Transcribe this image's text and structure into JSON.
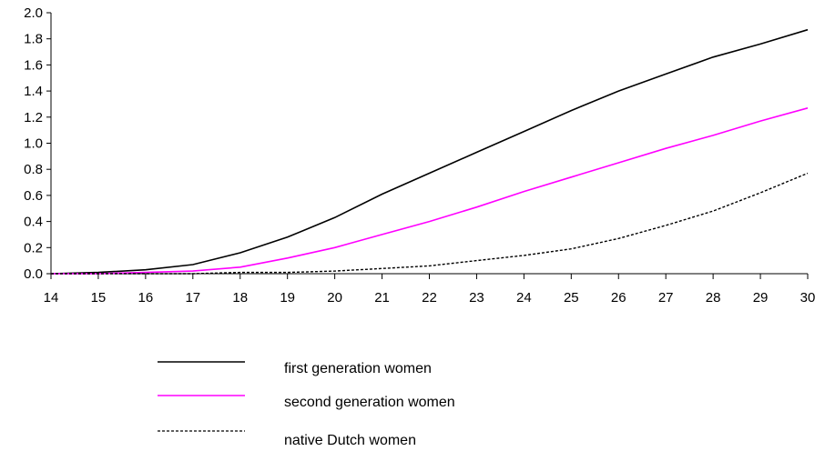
{
  "chart_data": {
    "type": "line",
    "title": "",
    "xlabel": "",
    "ylabel": "",
    "x": [
      14,
      15,
      16,
      17,
      18,
      19,
      20,
      21,
      22,
      23,
      24,
      25,
      26,
      27,
      28,
      29,
      30
    ],
    "xlim": [
      14,
      30
    ],
    "ylim": [
      0,
      2.0
    ],
    "y_ticks": [
      "0.0",
      "0.2",
      "0.4",
      "0.6",
      "0.8",
      "1.0",
      "1.2",
      "1.4",
      "1.6",
      "1.8",
      "2.0"
    ],
    "x_ticks": [
      "14",
      "15",
      "16",
      "17",
      "18",
      "19",
      "20",
      "21",
      "22",
      "23",
      "24",
      "25",
      "26",
      "27",
      "28",
      "29",
      "30"
    ],
    "grid": false,
    "legend_position": "bottom",
    "series": [
      {
        "name": "first generation women",
        "color": "#000000",
        "style": "solid",
        "values": [
          0.0,
          0.01,
          0.03,
          0.07,
          0.16,
          0.28,
          0.43,
          0.61,
          0.77,
          0.93,
          1.09,
          1.25,
          1.4,
          1.53,
          1.66,
          1.76,
          1.87
        ]
      },
      {
        "name": "second generation women",
        "color": "#ff00ff",
        "style": "solid",
        "values": [
          0.0,
          0.0,
          0.01,
          0.02,
          0.05,
          0.12,
          0.2,
          0.3,
          0.4,
          0.51,
          0.63,
          0.74,
          0.85,
          0.96,
          1.06,
          1.17,
          1.27
        ]
      },
      {
        "name": "native Dutch women",
        "color": "#000000",
        "style": "dashed",
        "values": [
          0.0,
          0.0,
          0.0,
          0.0,
          0.01,
          0.01,
          0.02,
          0.04,
          0.06,
          0.1,
          0.14,
          0.19,
          0.27,
          0.37,
          0.48,
          0.62,
          0.77
        ]
      }
    ]
  }
}
